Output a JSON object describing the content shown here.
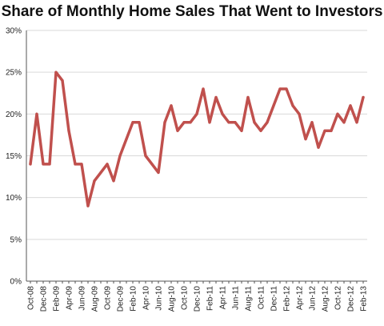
{
  "chart_data": {
    "type": "line",
    "title": "Share of Monthly Home Sales That Went to Investors",
    "xlabel": "",
    "ylabel": "",
    "ylim": [
      0,
      30
    ],
    "yticks": [
      "0%",
      "5%",
      "10%",
      "15%",
      "20%",
      "25%",
      "30%"
    ],
    "grid": true,
    "legend": "none",
    "x": [
      "Oct-08",
      "Nov-08",
      "Dec-08",
      "Jan-09",
      "Feb-09",
      "Mar-09",
      "Apr-09",
      "May-09",
      "Jun-09",
      "Jul-09",
      "Aug-09",
      "Sep-09",
      "Oct-09",
      "Nov-09",
      "Dec-09",
      "Jan-10",
      "Feb-10",
      "Mar-10",
      "Apr-10",
      "May-10",
      "Jun-10",
      "Jul-10",
      "Aug-10",
      "Sep-10",
      "Oct-10",
      "Nov-10",
      "Dec-10",
      "Jan-11",
      "Feb-11",
      "Mar-11",
      "Apr-11",
      "May-11",
      "Jun-11",
      "Jul-11",
      "Aug-11",
      "Sep-11",
      "Oct-11",
      "Nov-11",
      "Dec-11",
      "Jan-12",
      "Feb-12",
      "Mar-12",
      "Apr-12",
      "May-12",
      "Jun-12",
      "Jul-12",
      "Aug-12",
      "Sep-12",
      "Oct-12",
      "Nov-12",
      "Dec-12",
      "Jan-13",
      "Feb-13"
    ],
    "xtick_labels": [
      "Oct-08",
      "Dec-08",
      "Feb-09",
      "Apr-09",
      "Jun-09",
      "Aug-09",
      "Oct-09",
      "Dec-09",
      "Feb-10",
      "Apr-10",
      "Jun-10",
      "Aug-10",
      "Oct-10",
      "Dec-10",
      "Feb-11",
      "Apr-11",
      "Jun-11",
      "Aug-11",
      "Oct-11",
      "Dec-11",
      "Feb-12",
      "Apr-12",
      "Jun-12",
      "Aug-12",
      "Oct-12",
      "Dec-12",
      "Feb-13"
    ],
    "series": [
      {
        "values": [
          14,
          20,
          14,
          14,
          25,
          24,
          18,
          14,
          14,
          9,
          12,
          13,
          14,
          12,
          15,
          17,
          19,
          19,
          15,
          14,
          13,
          19,
          21,
          18,
          19,
          19,
          20,
          23,
          19,
          22,
          20,
          19,
          19,
          18,
          22,
          19,
          18,
          19,
          21,
          23,
          23,
          21,
          20,
          17,
          19,
          16,
          18,
          18,
          20,
          19,
          21,
          19,
          22
        ],
        "color": "#c0504d"
      }
    ]
  }
}
